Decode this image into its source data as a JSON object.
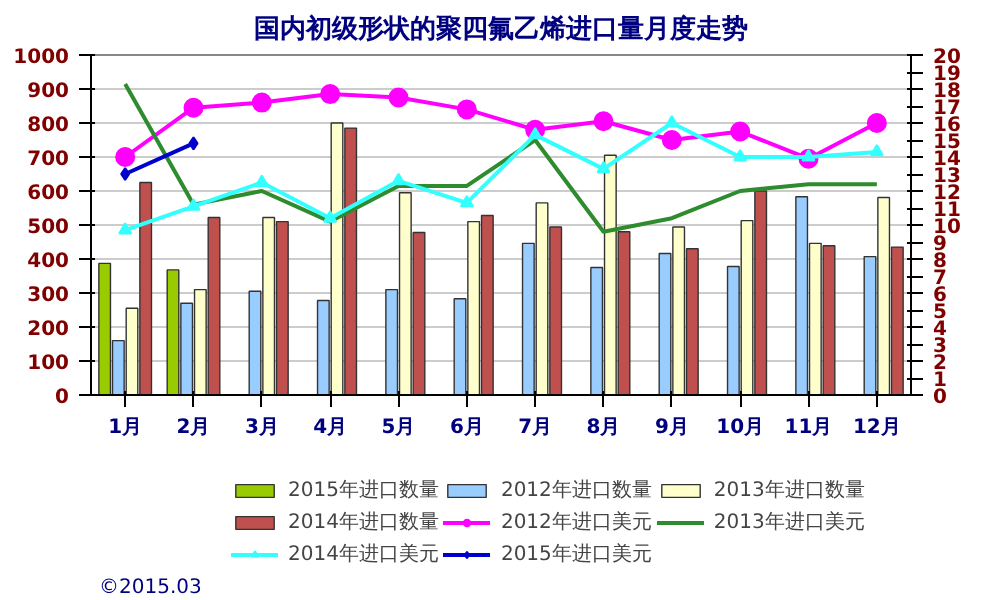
{
  "chart_data": {
    "type": "bar",
    "title": "国内初级形状的聚四氟乙烯进口量月度走势",
    "categories": [
      "1月",
      "2月",
      "3月",
      "4月",
      "5月",
      "6月",
      "7月",
      "8月",
      "9月",
      "10月",
      "11月",
      "12月"
    ],
    "ylim": [
      0,
      1000
    ],
    "yticks": [
      0,
      100,
      200,
      300,
      400,
      500,
      600,
      700,
      800,
      900,
      1000
    ],
    "y2lim": [
      0,
      20
    ],
    "y2ticks": [
      0,
      1,
      2,
      3,
      4,
      5,
      6,
      7,
      8,
      9,
      10,
      11,
      12,
      13,
      14,
      15,
      16,
      17,
      18,
      19,
      20
    ],
    "grid": "y",
    "legend": "bottom",
    "annotations": [
      "©2015.03"
    ],
    "series": [
      {
        "name": "2015年进口数量",
        "color": "#99cc00",
        "values": [
          387,
          368,
          null,
          null,
          null,
          null,
          null,
          null,
          null,
          null,
          null,
          null
        ]
      },
      {
        "name": "2012年进口数量",
        "color": "#99ccff",
        "values": [
          160,
          270,
          305,
          278,
          310,
          283,
          446,
          375,
          416,
          378,
          583,
          407
        ]
      },
      {
        "name": "2013年进口数量",
        "color": "#ffffcc",
        "values": [
          255,
          310,
          522,
          800,
          595,
          510,
          565,
          705,
          494,
          513,
          446,
          581
        ]
      },
      {
        "name": "2014年进口数量",
        "color": "#c0504d",
        "values": [
          625,
          522,
          510,
          785,
          478,
          528,
          494,
          480,
          430,
          600,
          439,
          435
        ]
      },
      {
        "name": "2012年进口美元",
        "type": "line",
        "axis": "y2",
        "marker": "circle",
        "color": "#ff00ff",
        "values": [
          14.0,
          16.9,
          17.2,
          17.7,
          17.5,
          16.8,
          15.6,
          16.1,
          15.0,
          15.5,
          13.9,
          16.0
        ]
      },
      {
        "name": "2013年进口美元",
        "type": "line",
        "axis": "y2",
        "marker": "none",
        "color": "#2e8b2e",
        "values": [
          18.3,
          11.2,
          12.0,
          10.2,
          12.3,
          12.3,
          15.0,
          9.6,
          10.4,
          12.0,
          12.4,
          12.4
        ]
      },
      {
        "name": "2014年进口美元",
        "type": "line",
        "axis": "y2",
        "marker": "triangle",
        "color": "#33ffff",
        "values": [
          9.7,
          11.1,
          12.5,
          10.4,
          12.6,
          11.3,
          15.3,
          13.3,
          16.0,
          14.0,
          14.0,
          14.3
        ]
      },
      {
        "name": "2015年进口美元",
        "type": "line",
        "axis": "y2",
        "marker": "diamond",
        "color": "#0000cc",
        "values": [
          13.0,
          14.8,
          null,
          null,
          null,
          null,
          null,
          null,
          null,
          null,
          null,
          null
        ]
      }
    ]
  }
}
